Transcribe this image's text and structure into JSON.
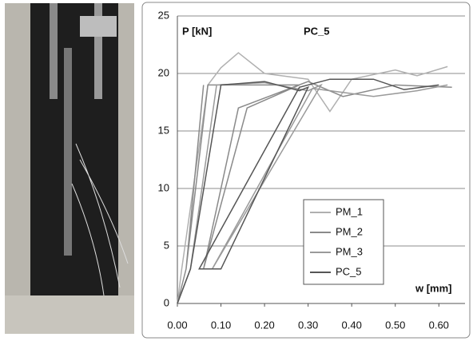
{
  "chart_data": {
    "type": "line",
    "annotations": [
      "P [kN]",
      "PC_5",
      "w [mm]"
    ],
    "xlim": [
      0,
      0.66
    ],
    "ylim": [
      0,
      25
    ],
    "xticks": [
      {
        "value": 0,
        "label": "0.00"
      },
      {
        "value": 0.1,
        "label": "0.10"
      },
      {
        "value": 0.2,
        "label": "0.20"
      },
      {
        "value": 0.3,
        "label": "0.30"
      },
      {
        "value": 0.4,
        "label": "0.40"
      },
      {
        "value": 0.5,
        "label": "0.50"
      },
      {
        "value": 0.6,
        "label": "0.60"
      }
    ],
    "yticks": [
      0,
      5,
      10,
      15,
      20,
      25
    ],
    "grid": true,
    "series": [
      {
        "name": "PM_1",
        "color": "#b0b0b0",
        "x": [
          0,
          0.01,
          0.07,
          0.1,
          0.14,
          0.2,
          0.3,
          0.35,
          0.4,
          0.5,
          0.55,
          0.62
        ],
        "values": [
          0,
          3,
          19,
          20.5,
          21.8,
          20,
          19.5,
          16.7,
          19.5,
          20.3,
          19.8,
          20.6
        ]
      },
      {
        "name": "PM_2",
        "color": "#8a8a8a",
        "x": [
          0,
          0.02,
          0.06,
          0.02,
          0.07,
          0.15,
          0.28,
          0.16,
          0.06,
          0.14,
          0.3,
          0.38,
          0.5,
          0.63
        ],
        "values": [
          0,
          3,
          19,
          3,
          19,
          19,
          19,
          17,
          3,
          17,
          19.3,
          18,
          19,
          18.8
        ]
      },
      {
        "name": "PM_3",
        "color": "#9a9a9a",
        "x": [
          0,
          0.03,
          0.09,
          0.2,
          0.3,
          0.33,
          0.08,
          0.31,
          0.45,
          0.55,
          0.62
        ],
        "values": [
          0,
          3,
          19,
          19.2,
          18.5,
          19,
          3,
          18.7,
          18,
          18.5,
          19
        ]
      },
      {
        "name": "PC_5",
        "color": "#555555",
        "x": [
          0,
          0.03,
          0.1,
          0.2,
          0.28,
          0.3,
          0.1,
          0.05,
          0.28,
          0.35,
          0.45,
          0.52,
          0.6
        ],
        "values": [
          0,
          3,
          19,
          19.3,
          18.5,
          18.8,
          3,
          3,
          18.8,
          19.5,
          19.5,
          18.6,
          19
        ]
      }
    ]
  }
}
